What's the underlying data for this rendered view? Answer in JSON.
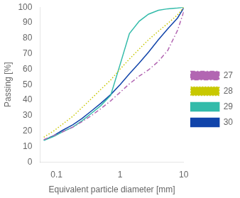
{
  "chart_data": {
    "type": "line",
    "xlabel": "Equivalent particle diameter [mm]",
    "ylabel": "Passing [%]",
    "log": "x",
    "xlim": [
      0.055,
      10
    ],
    "xticks": [
      0.1,
      1,
      10
    ],
    "ylim": [
      0,
      100
    ],
    "yticks": [
      0,
      10,
      20,
      30,
      40,
      50,
      60,
      70,
      80,
      90,
      100
    ],
    "grid": false,
    "legend": "right",
    "x": [
      0.063,
      0.09,
      0.125,
      0.18,
      0.25,
      0.355,
      0.5,
      0.71,
      1.0,
      1.4,
      2.0,
      2.8,
      4.0,
      5.6,
      8.0,
      10.0
    ],
    "series": [
      {
        "name": "27",
        "color": "#b266b2",
        "line_style": "dashdot",
        "values": [
          14.5,
          17.0,
          19.5,
          22.5,
          26.0,
          30.0,
          34.5,
          39.5,
          45.0,
          50.5,
          55.5,
          59.5,
          65.0,
          72.0,
          85.0,
          97.0
        ]
      },
      {
        "name": "28",
        "color": "#c8c800",
        "line_style": "dotted",
        "values": [
          16.0,
          20.0,
          24.5,
          29.5,
          35.0,
          41.0,
          47.0,
          53.0,
          60.0,
          66.5,
          73.0,
          79.0,
          84.5,
          89.5,
          95.0,
          100.0
        ]
      },
      {
        "name": "29",
        "color": "#33bbaa",
        "line_style": "solid",
        "values": [
          14.0,
          16.5,
          19.5,
          22.5,
          26.5,
          31.5,
          36.5,
          43.0,
          63.0,
          83.0,
          91.0,
          95.5,
          98.0,
          99.0,
          99.5,
          100.0
        ]
      },
      {
        "name": "30",
        "color": "#1144aa",
        "line_style": "solid",
        "values": [
          14.0,
          17.0,
          20.5,
          24.0,
          28.0,
          33.0,
          38.0,
          43.5,
          50.0,
          57.0,
          64.0,
          71.0,
          79.0,
          86.0,
          93.0,
          99.5
        ]
      }
    ]
  }
}
